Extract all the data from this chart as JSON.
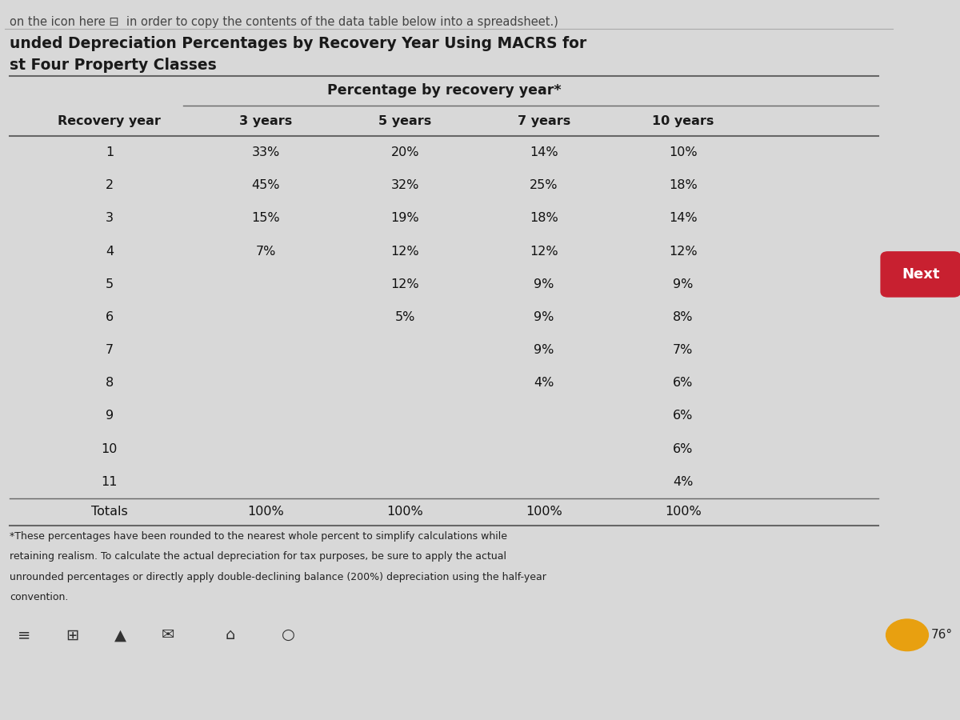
{
  "top_text": "on the icon here ⊟  in order to copy the contents of the data table below into a spreadsheet.)",
  "title_line1": "unded Depreciation Percentages by Recovery Year Using MACRS for",
  "title_line2": "st Four Property Classes",
  "span_header": "Percentage by recovery year*",
  "col_headers": [
    "Recovery year",
    "3 years",
    "5 years",
    "7 years",
    "10 years"
  ],
  "rows": [
    [
      "1",
      "33%",
      "20%",
      "14%",
      "10%"
    ],
    [
      "2",
      "45%",
      "32%",
      "25%",
      "18%"
    ],
    [
      "3",
      "15%",
      "19%",
      "18%",
      "14%"
    ],
    [
      "4",
      "7%",
      "12%",
      "12%",
      "12%"
    ],
    [
      "5",
      "",
      "12%",
      "9%",
      "9%"
    ],
    [
      "6",
      "",
      "5%",
      "9%",
      "8%"
    ],
    [
      "7",
      "",
      "",
      "9%",
      "7%"
    ],
    [
      "8",
      "",
      "",
      "4%",
      "6%"
    ],
    [
      "9",
      "",
      "",
      "",
      "6%"
    ],
    [
      "10",
      "",
      "",
      "",
      "6%"
    ],
    [
      "11",
      "",
      "",
      "",
      "4%"
    ]
  ],
  "totals_row": [
    "Totals",
    "100%",
    "100%",
    "100%",
    "100%"
  ],
  "footnote_lines": [
    "*These percentages have been rounded to the nearest whole percent to simplify calculations while",
    "retaining realism. To calculate the actual depreciation for tax purposes, be sure to apply the actual",
    "unrounded percentages or directly apply double-declining balance (200%) depreciation using the half-year",
    "convention."
  ],
  "page_bg": "#d8d8d8",
  "content_bg": "#f0efee",
  "taskbar_bg": "#c8c8c8",
  "taskbar_bottom_bg": "#111111",
  "text_color": "#111111",
  "header_color": "#1a1a1a",
  "top_text_color": "#444444",
  "line_color": "#666666",
  "next_btn_color": "#c82030",
  "next_btn_text": "Next",
  "weather_color": "#e8a010",
  "weather_text": "76°",
  "footnote_color": "#222222"
}
